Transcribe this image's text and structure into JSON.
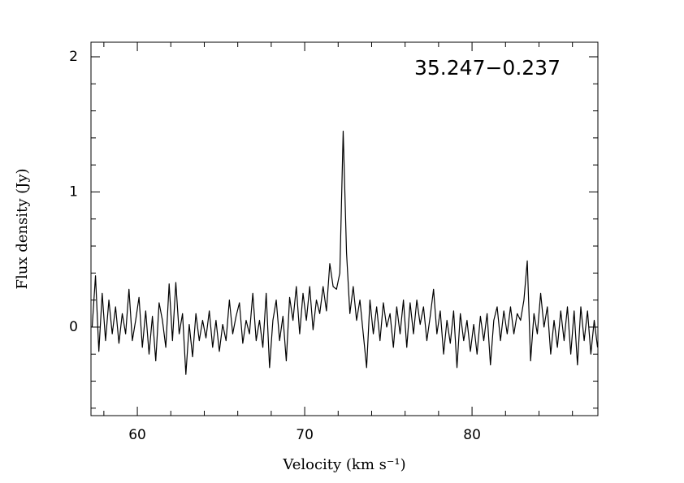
{
  "chart_data": {
    "type": "line",
    "annotation": "35.247−0.237",
    "x_label": "Velocity (km s⁻¹)",
    "y_label": "Flux density (Jy)",
    "color": "#000000",
    "x": [
      57.3,
      57.5,
      57.7,
      57.9,
      58.1,
      58.3,
      58.5,
      58.7,
      58.9,
      59.1,
      59.3,
      59.5,
      59.7,
      59.9,
      60.1,
      60.3,
      60.5,
      60.7,
      60.9,
      61.1,
      61.3,
      61.5,
      61.7,
      61.9,
      62.1,
      62.3,
      62.5,
      62.7,
      62.9,
      63.1,
      63.3,
      63.5,
      63.7,
      63.9,
      64.1,
      64.3,
      64.5,
      64.7,
      64.9,
      65.1,
      65.3,
      65.5,
      65.7,
      65.9,
      66.1,
      66.3,
      66.5,
      66.7,
      66.9,
      67.1,
      67.3,
      67.5,
      67.7,
      67.9,
      68.1,
      68.3,
      68.5,
      68.7,
      68.9,
      69.1,
      69.3,
      69.5,
      69.7,
      69.9,
      70.1,
      70.3,
      70.5,
      70.7,
      70.9,
      71.1,
      71.3,
      71.5,
      71.7,
      71.9,
      72.1,
      72.3,
      72.5,
      72.7,
      72.9,
      73.1,
      73.3,
      73.5,
      73.7,
      73.9,
      74.1,
      74.3,
      74.5,
      74.7,
      74.9,
      75.1,
      75.3,
      75.5,
      75.7,
      75.9,
      76.1,
      76.3,
      76.5,
      76.7,
      76.9,
      77.1,
      77.3,
      77.5,
      77.7,
      77.9,
      78.1,
      78.3,
      78.5,
      78.7,
      78.9,
      79.1,
      79.3,
      79.5,
      79.7,
      79.9,
      80.1,
      80.3,
      80.5,
      80.7,
      80.9,
      81.1,
      81.3,
      81.5,
      81.7,
      81.9,
      82.1,
      82.3,
      82.5,
      82.7,
      82.9,
      83.1,
      83.3,
      83.5,
      83.7,
      83.9,
      84.1,
      84.3,
      84.5,
      84.7,
      84.9,
      85.1,
      85.3,
      85.5,
      85.7,
      85.9,
      86.1,
      86.3,
      86.5,
      86.7,
      86.9,
      87.1,
      87.3,
      87.5
    ],
    "values": [
      0,
      0.38,
      -0.18,
      0.25,
      -0.1,
      0.2,
      -0.05,
      0.15,
      -0.12,
      0.1,
      -0.05,
      0.28,
      -0.1,
      0.05,
      0.22,
      -0.15,
      0.12,
      -0.2,
      0.08,
      -0.25,
      0.18,
      0.05,
      -0.15,
      0.32,
      -0.1,
      0.33,
      -0.05,
      0.1,
      -0.35,
      0.02,
      -0.22,
      0.1,
      -0.1,
      0.05,
      -0.08,
      0.12,
      -0.15,
      0.05,
      -0.18,
      0.02,
      -0.1,
      0.2,
      -0.05,
      0.08,
      0.18,
      -0.12,
      0.05,
      -0.05,
      0.25,
      -0.1,
      0.05,
      -0.15,
      0.25,
      -0.3,
      0.05,
      0.2,
      -0.1,
      0.08,
      -0.25,
      0.22,
      0.05,
      0.3,
      -0.05,
      0.25,
      0.05,
      0.3,
      -0.02,
      0.2,
      0.1,
      0.3,
      0.12,
      0.47,
      0.3,
      0.28,
      0.4,
      1.45,
      0.55,
      0.1,
      0.3,
      0.05,
      0.2,
      -0.05,
      -0.3,
      0.2,
      -0.05,
      0.15,
      -0.1,
      0.18,
      0,
      0.1,
      -0.15,
      0.15,
      -0.05,
      0.2,
      -0.15,
      0.18,
      -0.05,
      0.2,
      0.02,
      0.15,
      -0.1,
      0.08,
      0.28,
      -0.05,
      0.12,
      -0.2,
      0.05,
      -0.12,
      0.12,
      -0.3,
      0.1,
      -0.1,
      0.05,
      -0.18,
      0.02,
      -0.2,
      0.08,
      -0.1,
      0.1,
      -0.28,
      0.05,
      0.15,
      -0.1,
      0.12,
      -0.05,
      0.15,
      -0.05,
      0.1,
      0.05,
      0.2,
      0.49,
      -0.25,
      0.1,
      -0.05,
      0.25,
      0,
      0.15,
      -0.2,
      0.05,
      -0.15,
      0.12,
      -0.1,
      0.15,
      -0.2,
      0.12,
      -0.28,
      0.15,
      -0.1,
      0.12,
      -0.2,
      0.05,
      -0.15
    ],
    "xlim": [
      57.23,
      87.52
    ],
    "ylim": [
      -0.655,
      2.108
    ],
    "xticks": [
      60,
      70,
      80
    ],
    "yticks": [
      0,
      1,
      2
    ],
    "xminor": [
      58,
      62,
      64,
      66,
      68,
      72,
      74,
      76,
      78,
      82,
      84,
      86
    ],
    "yminor": [
      -0.6,
      -0.4,
      -0.2,
      0.2,
      0.4,
      0.6,
      0.8,
      1.2,
      1.4,
      1.6,
      1.8
    ]
  }
}
